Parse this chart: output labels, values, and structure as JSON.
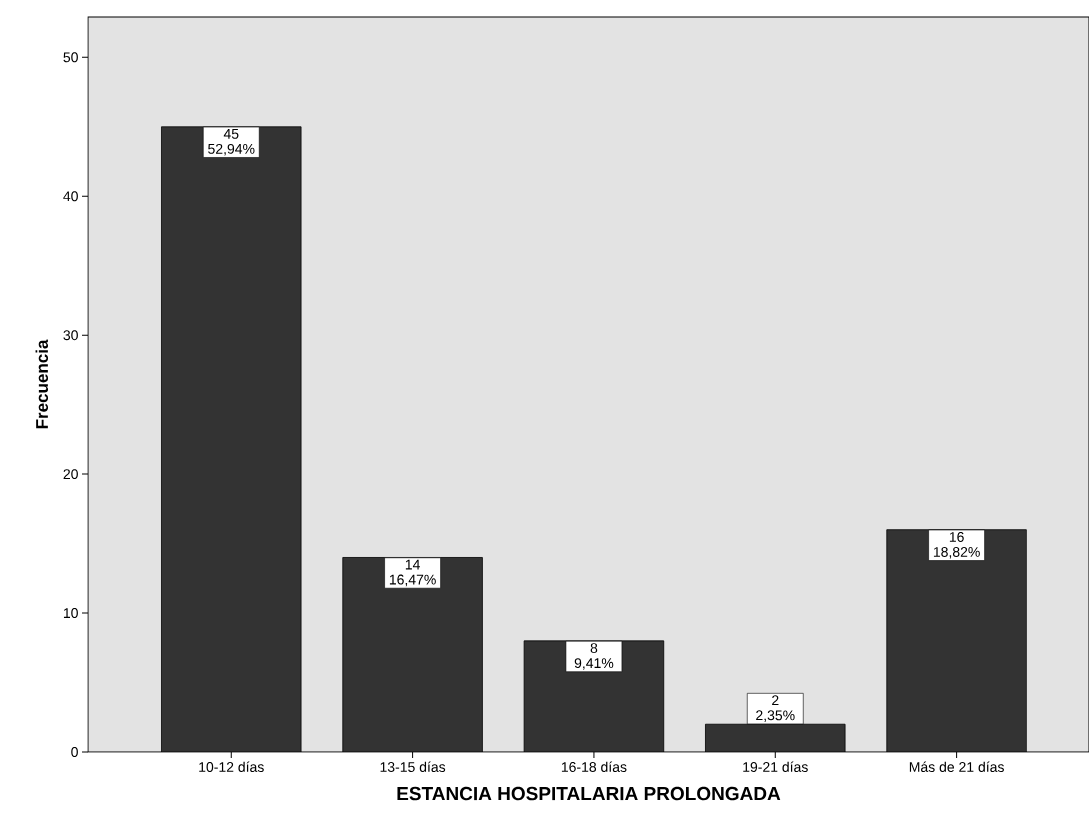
{
  "chart_data": {
    "type": "bar",
    "xlabel": "ESTANCIA HOSPITALARIA PROLONGADA",
    "ylabel": "Frecuencia",
    "categories": [
      "10-12 días",
      "13-15 días",
      "16-18 días",
      "19-21 días",
      "Más de 21 días"
    ],
    "values": [
      45,
      14,
      8,
      2,
      16
    ],
    "value_labels": [
      "45 52,94%",
      "14 16,47%",
      "8 9,41%",
      "2 2,35%",
      "16 18,82%"
    ],
    "color": "#333333",
    "ylim": [
      0,
      52.9
    ],
    "yticks": [
      0,
      10,
      20,
      30,
      40,
      50
    ]
  }
}
